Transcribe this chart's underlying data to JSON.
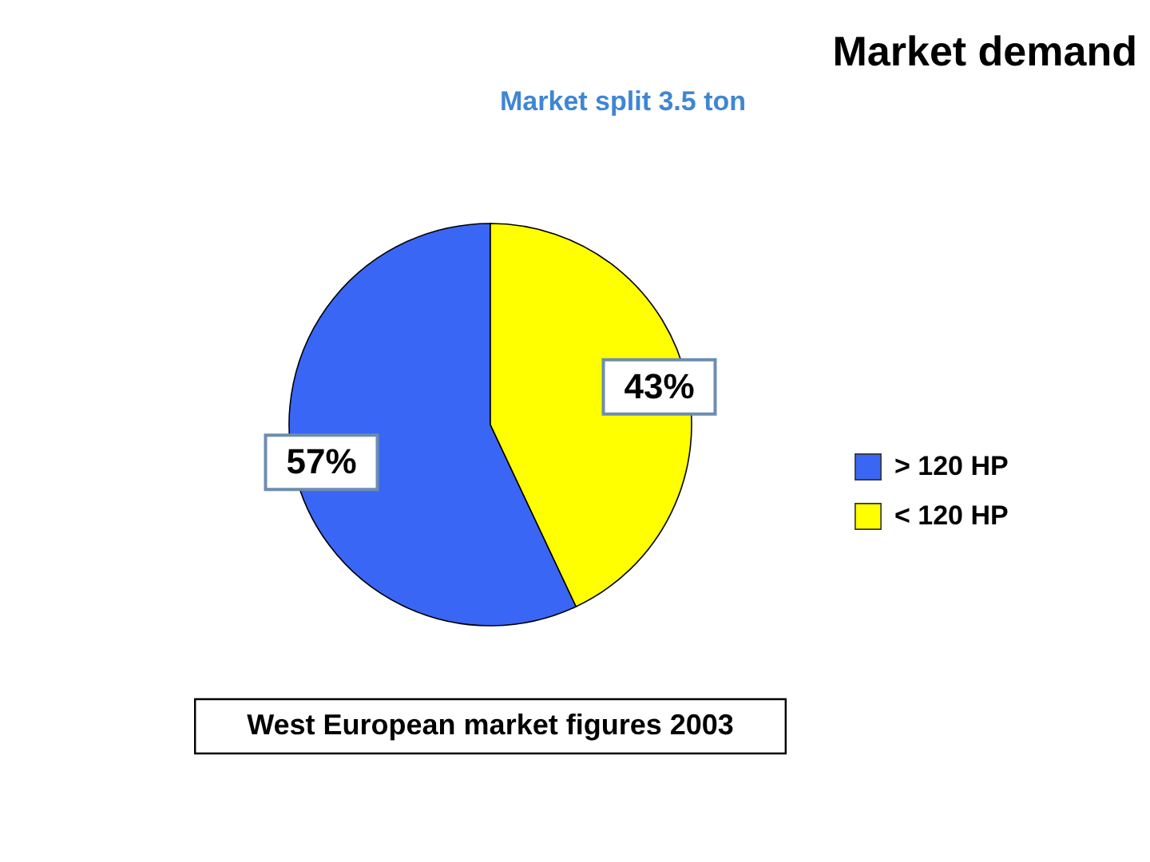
{
  "chart_data": {
    "type": "pie",
    "title": "Market demand",
    "subtitle": "Market split 3.5 ton",
    "categories": [
      "> 120 HP",
      "< 120 HP"
    ],
    "values": [
      57,
      43
    ],
    "colors": [
      "#3a66f5",
      "#ffff00"
    ],
    "value_labels": [
      "57%",
      "43%"
    ],
    "annotations": [
      "West European market figures 2003"
    ],
    "legend": "right"
  }
}
